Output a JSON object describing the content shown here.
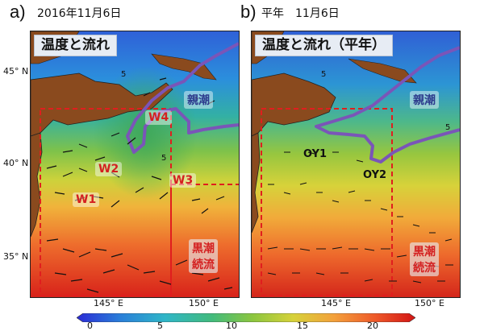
{
  "panel_a": {
    "letter": "a)",
    "date": "2016年11月6日",
    "title": "温度と流れ",
    "lat_labels": [
      "45° N",
      "40° N",
      "35° N"
    ],
    "lon_labels": [
      "145° E",
      "150° E"
    ],
    "regions": {
      "W1": "W1",
      "W2": "W2",
      "W3": "W3",
      "W4": "W4",
      "oyashio": "親潮",
      "kuroshio": "黒潮\n続流"
    }
  },
  "panel_b": {
    "letter": "b)",
    "date": "平年　11月6日",
    "title": "温度と流れ（平年）",
    "lon_labels": [
      "145° E",
      "150° E"
    ],
    "regions": {
      "OY1": "OY1",
      "OY2": "OY2",
      "oyashio": "親潮",
      "kuroshio": "黒潮\n続流"
    }
  },
  "colorbar": {
    "ticks": [
      "0",
      "5",
      "10",
      "15",
      "20"
    ],
    "min": 0,
    "max": 22,
    "colors": [
      "#2b2bd6",
      "#2a7fd9",
      "#2fb6c8",
      "#42bb7c",
      "#8cc63f",
      "#d7d23a",
      "#f3a03b",
      "#ee5a2a",
      "#d21414"
    ]
  }
}
